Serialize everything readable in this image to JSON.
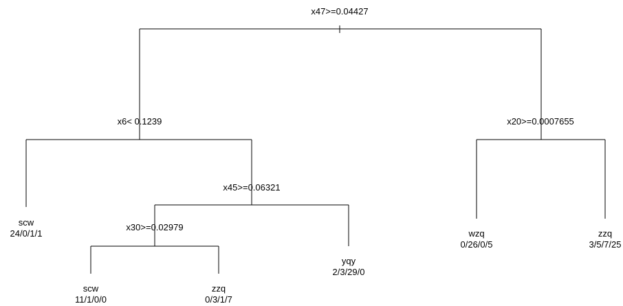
{
  "tree": {
    "root": {
      "split": "x47>=0.04427",
      "left": {
        "split": "x6< 0.1239",
        "left": {
          "class": "scw",
          "counts": "24/0/1/1"
        },
        "right": {
          "split": "x45>=0.06321",
          "left": {
            "split": "x30>=0.02979",
            "left": {
              "class": "scw",
              "counts": "11/1/0/0"
            },
            "right": {
              "class": "zzq",
              "counts": "0/3/1/7"
            }
          },
          "right": {
            "class": "yqy",
            "counts": "2/3/29/0"
          }
        }
      },
      "right": {
        "split": "x20>=0.0007655",
        "left": {
          "class": "wzq",
          "counts": "0/26/0/5"
        },
        "right": {
          "class": "zzq",
          "counts": "3/5/7/25"
        }
      }
    }
  }
}
